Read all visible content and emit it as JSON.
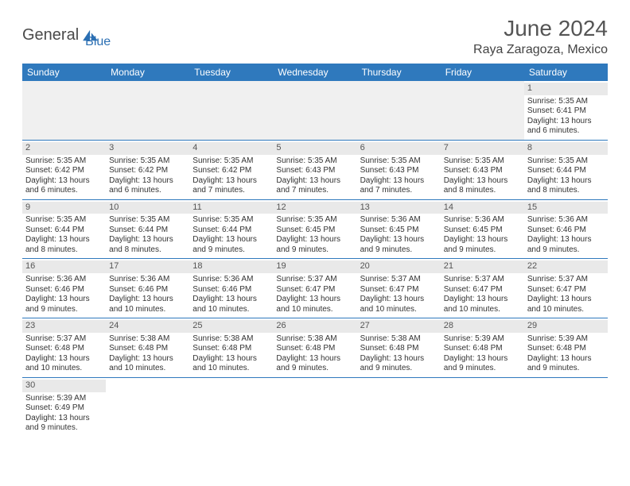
{
  "brand": {
    "text1": "General",
    "text2": "Blue"
  },
  "header": {
    "title": "June 2024",
    "location": "Raya Zaragoza, Mexico"
  },
  "style": {
    "header_bg": "#2f79bd",
    "header_text": "#ffffff",
    "daynum_bg": "#e9e9e9",
    "row_divider": "#2f79bd",
    "page_bg": "#ffffff",
    "title_fontsize": 28,
    "location_fontsize": 16,
    "th_fontsize": 12,
    "cell_fontsize": 10
  },
  "columns": [
    "Sunday",
    "Monday",
    "Tuesday",
    "Wednesday",
    "Thursday",
    "Friday",
    "Saturday"
  ],
  "weeks": [
    [
      null,
      null,
      null,
      null,
      null,
      null,
      {
        "d": "1",
        "sr": "5:35 AM",
        "ss": "6:41 PM",
        "dl": "13 hours and 6 minutes."
      }
    ],
    [
      {
        "d": "2",
        "sr": "5:35 AM",
        "ss": "6:42 PM",
        "dl": "13 hours and 6 minutes."
      },
      {
        "d": "3",
        "sr": "5:35 AM",
        "ss": "6:42 PM",
        "dl": "13 hours and 6 minutes."
      },
      {
        "d": "4",
        "sr": "5:35 AM",
        "ss": "6:42 PM",
        "dl": "13 hours and 7 minutes."
      },
      {
        "d": "5",
        "sr": "5:35 AM",
        "ss": "6:43 PM",
        "dl": "13 hours and 7 minutes."
      },
      {
        "d": "6",
        "sr": "5:35 AM",
        "ss": "6:43 PM",
        "dl": "13 hours and 7 minutes."
      },
      {
        "d": "7",
        "sr": "5:35 AM",
        "ss": "6:43 PM",
        "dl": "13 hours and 8 minutes."
      },
      {
        "d": "8",
        "sr": "5:35 AM",
        "ss": "6:44 PM",
        "dl": "13 hours and 8 minutes."
      }
    ],
    [
      {
        "d": "9",
        "sr": "5:35 AM",
        "ss": "6:44 PM",
        "dl": "13 hours and 8 minutes."
      },
      {
        "d": "10",
        "sr": "5:35 AM",
        "ss": "6:44 PM",
        "dl": "13 hours and 8 minutes."
      },
      {
        "d": "11",
        "sr": "5:35 AM",
        "ss": "6:44 PM",
        "dl": "13 hours and 9 minutes."
      },
      {
        "d": "12",
        "sr": "5:35 AM",
        "ss": "6:45 PM",
        "dl": "13 hours and 9 minutes."
      },
      {
        "d": "13",
        "sr": "5:36 AM",
        "ss": "6:45 PM",
        "dl": "13 hours and 9 minutes."
      },
      {
        "d": "14",
        "sr": "5:36 AM",
        "ss": "6:45 PM",
        "dl": "13 hours and 9 minutes."
      },
      {
        "d": "15",
        "sr": "5:36 AM",
        "ss": "6:46 PM",
        "dl": "13 hours and 9 minutes."
      }
    ],
    [
      {
        "d": "16",
        "sr": "5:36 AM",
        "ss": "6:46 PM",
        "dl": "13 hours and 9 minutes."
      },
      {
        "d": "17",
        "sr": "5:36 AM",
        "ss": "6:46 PM",
        "dl": "13 hours and 10 minutes."
      },
      {
        "d": "18",
        "sr": "5:36 AM",
        "ss": "6:46 PM",
        "dl": "13 hours and 10 minutes."
      },
      {
        "d": "19",
        "sr": "5:37 AM",
        "ss": "6:47 PM",
        "dl": "13 hours and 10 minutes."
      },
      {
        "d": "20",
        "sr": "5:37 AM",
        "ss": "6:47 PM",
        "dl": "13 hours and 10 minutes."
      },
      {
        "d": "21",
        "sr": "5:37 AM",
        "ss": "6:47 PM",
        "dl": "13 hours and 10 minutes."
      },
      {
        "d": "22",
        "sr": "5:37 AM",
        "ss": "6:47 PM",
        "dl": "13 hours and 10 minutes."
      }
    ],
    [
      {
        "d": "23",
        "sr": "5:37 AM",
        "ss": "6:48 PM",
        "dl": "13 hours and 10 minutes."
      },
      {
        "d": "24",
        "sr": "5:38 AM",
        "ss": "6:48 PM",
        "dl": "13 hours and 10 minutes."
      },
      {
        "d": "25",
        "sr": "5:38 AM",
        "ss": "6:48 PM",
        "dl": "13 hours and 10 minutes."
      },
      {
        "d": "26",
        "sr": "5:38 AM",
        "ss": "6:48 PM",
        "dl": "13 hours and 9 minutes."
      },
      {
        "d": "27",
        "sr": "5:38 AM",
        "ss": "6:48 PM",
        "dl": "13 hours and 9 minutes."
      },
      {
        "d": "28",
        "sr": "5:39 AM",
        "ss": "6:48 PM",
        "dl": "13 hours and 9 minutes."
      },
      {
        "d": "29",
        "sr": "5:39 AM",
        "ss": "6:48 PM",
        "dl": "13 hours and 9 minutes."
      }
    ],
    [
      {
        "d": "30",
        "sr": "5:39 AM",
        "ss": "6:49 PM",
        "dl": "13 hours and 9 minutes."
      },
      null,
      null,
      null,
      null,
      null,
      null
    ]
  ],
  "labels": {
    "sunrise": "Sunrise:",
    "sunset": "Sunset:",
    "daylight": "Daylight:"
  }
}
